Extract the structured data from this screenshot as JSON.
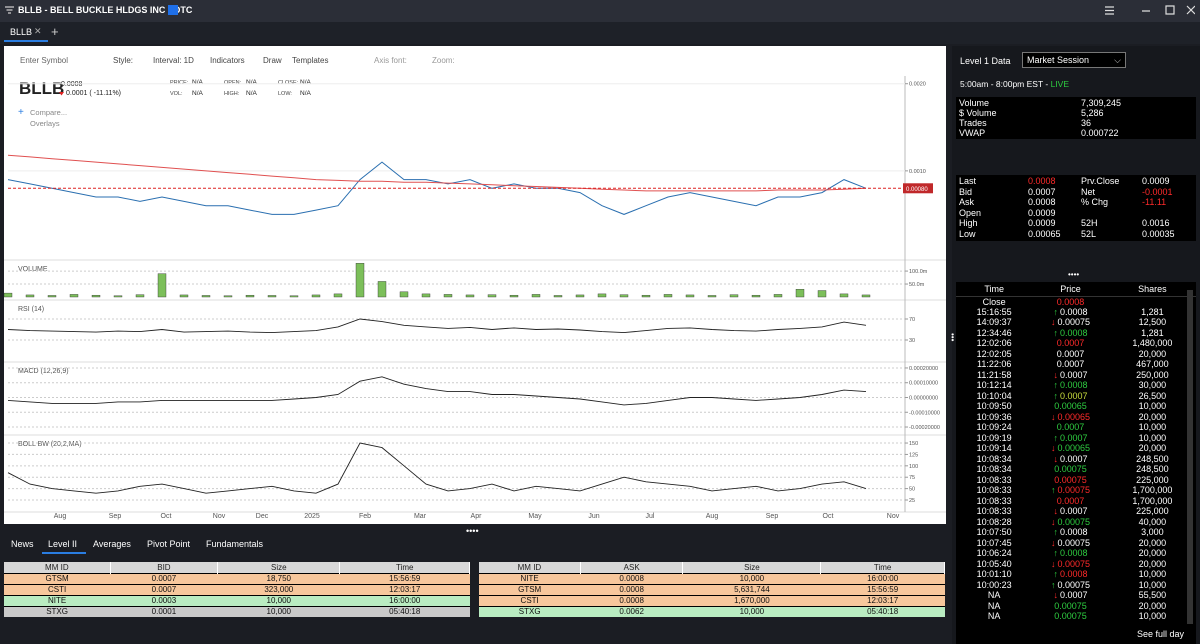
{
  "header": {
    "title": "BLLB - BELL BUCKLE HLDGS INC : OTC",
    "tabs": [
      "BLLB"
    ]
  },
  "toolbar": [
    "Enter Symbol",
    "Style:",
    "Interval: 1D",
    "Indicators",
    "Draw",
    "Templates",
    "Axis font:",
    "Zoom:"
  ],
  "quote": {
    "symbol": "BLLB",
    "price": "0.0008",
    "change": "0.0001 ( -11.11%)",
    "fields": [
      [
        "PRICE:",
        "N/A"
      ],
      [
        "OPEN:",
        "N/A"
      ],
      [
        "CLOSE:",
        "N/A"
      ],
      [
        "VOL:",
        "N/A"
      ],
      [
        "HIGH:",
        "N/A"
      ],
      [
        "LOW:",
        "N/A"
      ]
    ],
    "links": [
      "Compare...",
      "Overlays"
    ]
  },
  "chart_data": [
    {
      "type": "line",
      "ylim": [
        0,
        0.0021
      ],
      "yticks": [
        {
          "value": 0.002,
          "label": "0.0020"
        },
        {
          "value": 0.001,
          "label": "0.0010"
        }
      ],
      "current": {
        "value": 0.0008,
        "label": "0.00080"
      },
      "series": [
        {
          "color": "#2a6fb0",
          "values": [
            0.0009,
            0.00085,
            0.0008,
            0.00075,
            0.0007,
            0.0007,
            0.00065,
            0.0007,
            0.00065,
            0.0006,
            0.0006,
            0.00055,
            0.0005,
            0.0005,
            0.00055,
            0.0006,
            0.0009,
            0.0011,
            0.0009,
            0.0009,
            0.00085,
            0.0009,
            0.0008,
            0.00085,
            0.0008,
            0.0008,
            0.00075,
            0.0006,
            0.0005,
            0.0006,
            0.0007,
            0.00075,
            0.0007,
            0.00065,
            0.0006,
            0.0007,
            0.0007,
            0.00075,
            0.0009,
            0.0008
          ]
        },
        {
          "color": "#e05050",
          "values": [
            0.00118,
            0.00116,
            0.00114,
            0.00112,
            0.0011,
            0.00108,
            0.00106,
            0.00104,
            0.00102,
            0.001,
            0.00098,
            0.00096,
            0.00094,
            0.00092,
            0.0009,
            0.00089,
            0.00088,
            0.00088,
            0.00087,
            0.00087,
            0.00086,
            0.00085,
            0.00084,
            0.00083,
            0.00082,
            0.00081,
            0.0008,
            0.00079,
            0.00078,
            0.00077,
            0.00077,
            0.00077,
            0.00077,
            0.00077,
            0.00077,
            0.00078,
            0.00078,
            0.00078,
            0.00079,
            0.0008
          ]
        }
      ],
      "xticks": [
        "Aug",
        "Sep",
        "Oct",
        "Nov",
        "Dec",
        "2025",
        "Feb",
        "Mar",
        "Apr",
        "May",
        "Jun",
        "Jul",
        "Aug",
        "Sep",
        "Oct",
        "Nov"
      ]
    },
    {
      "type": "bar",
      "title": "VOLUME",
      "ylim": [
        0,
        135000000
      ],
      "yticks": [
        {
          "value": 100000000,
          "label": "100.0m"
        },
        {
          "value": 50000000,
          "label": "50.0m"
        }
      ],
      "color": "#7cbf5a",
      "values": [
        15000000,
        8000000,
        6000000,
        10000000,
        7000000,
        5000000,
        9000000,
        90000000,
        8000000,
        6000000,
        5000000,
        7000000,
        6000000,
        5000000,
        8000000,
        12000000,
        130000000,
        60000000,
        20000000,
        12000000,
        10000000,
        8000000,
        9000000,
        7000000,
        10000000,
        6000000,
        8000000,
        12000000,
        9000000,
        7000000,
        10000000,
        8000000,
        6000000,
        9000000,
        7000000,
        10000000,
        30000000,
        25000000,
        12000000,
        8000000
      ]
    },
    {
      "type": "line",
      "title": "RSI (14)",
      "ylim": [
        0,
        100
      ],
      "yticks": [
        70,
        30
      ],
      "color": "#222",
      "values": [
        50,
        48,
        47,
        46,
        45,
        47,
        46,
        50,
        45,
        46,
        47,
        45,
        44,
        46,
        48,
        55,
        70,
        65,
        58,
        55,
        52,
        54,
        50,
        53,
        50,
        51,
        49,
        46,
        44,
        48,
        52,
        53,
        50,
        48,
        47,
        50,
        52,
        55,
        64,
        58
      ]
    },
    {
      "type": "line",
      "title": "MACD (12,26,9)",
      "ylim": [
        -0.00025,
        0.00022
      ],
      "yticks": [
        {
          "value": 0.0002,
          "label": "0.00020000"
        },
        {
          "value": 0.0001,
          "label": "0.00010000"
        },
        {
          "value": 0,
          "label": "0.00000000"
        },
        {
          "value": -0.0001,
          "label": "-0.00010000"
        },
        {
          "value": -0.0002,
          "label": "-0.00020000"
        }
      ],
      "color": "#222",
      "values": [
        -2e-05,
        -3e-05,
        -4e-05,
        -4e-05,
        -4e-05,
        -3e-05,
        -3e-05,
        -2e-05,
        -2e-05,
        -2e-05,
        -2e-05,
        -2e-05,
        -2e-05,
        -1e-05,
        0,
        2e-05,
        0.00011,
        0.00014,
        9e-05,
        6e-05,
        4e-05,
        4e-05,
        2e-05,
        2e-05,
        1e-05,
        0,
        -1e-05,
        -3e-05,
        -5e-05,
        -4e-05,
        -2e-05,
        0,
        0,
        -1e-05,
        -2e-05,
        -1e-05,
        0,
        2e-05,
        5e-05,
        4e-05
      ]
    },
    {
      "type": "line",
      "title": "BOLL BW (20,2,MA)",
      "ylim": [
        0,
        165
      ],
      "yticks": [
        150,
        125,
        100,
        75,
        50,
        25
      ],
      "color": "#222",
      "values": [
        85,
        60,
        50,
        45,
        40,
        45,
        55,
        60,
        50,
        40,
        45,
        50,
        55,
        45,
        40,
        60,
        150,
        140,
        100,
        60,
        45,
        50,
        60,
        45,
        55,
        50,
        45,
        60,
        75,
        65,
        60,
        55,
        45,
        50,
        55,
        45,
        50,
        60,
        65,
        50
      ]
    }
  ],
  "bottom": {
    "tabs": [
      "News",
      "Level II",
      "Averages",
      "Pivot Point",
      "Fundamentals"
    ],
    "bid": {
      "headers": [
        "MM ID",
        "BID",
        "Size",
        "Time"
      ],
      "rows": [
        {
          "cells": [
            "GTSM",
            "0.0007",
            "18,750",
            "15:56:59"
          ],
          "color": "#f7c79c"
        },
        {
          "cells": [
            "CSTI",
            "0.0007",
            "323,000",
            "12:03:17"
          ],
          "color": "#f7c79c"
        },
        {
          "cells": [
            "NITE",
            "0.0003",
            "10,000",
            "16:00:00"
          ],
          "color": "#b9ecc1"
        },
        {
          "cells": [
            "STXG",
            "0.0001",
            "10,000",
            "05:40:18"
          ],
          "color": "#c9c9c9"
        }
      ]
    },
    "ask": {
      "headers": [
        "MM ID",
        "ASK",
        "Size",
        "Time"
      ],
      "rows": [
        {
          "cells": [
            "NITE",
            "0.0008",
            "10,000",
            "16:00:00"
          ],
          "color": "#f7c79c"
        },
        {
          "cells": [
            "GTSM",
            "0.0008",
            "5,631,744",
            "15:56:59"
          ],
          "color": "#f7c79c"
        },
        {
          "cells": [
            "CSTI",
            "0.0008",
            "1,670,000",
            "12:03:17"
          ],
          "color": "#f7c79c"
        },
        {
          "cells": [
            "STXG",
            "0.0062",
            "10,000",
            "05:40:18"
          ],
          "color": "#b9ecc1"
        }
      ]
    }
  },
  "level1": {
    "title": "Level 1 Data",
    "session": "Market Session",
    "hours": "5:00am - 8:00pm EST - ",
    "live": "LIVE",
    "stats": [
      [
        "Volume",
        "7,309,245"
      ],
      [
        "$ Volume",
        "5,286"
      ],
      [
        " Trades",
        "36"
      ],
      [
        " VWAP",
        "0.000722"
      ]
    ],
    "quote": [
      {
        "cells": [
          "Last",
          "0.0008",
          "Prv.Close",
          "0.0009"
        ],
        "colors": [
          "#fff",
          "#ff2a2a",
          "#fff",
          "#fff"
        ]
      },
      {
        "cells": [
          "Bid",
          "0.0007",
          "Net",
          "-0.0001"
        ],
        "colors": [
          "#fff",
          "#fff",
          "#fff",
          "#ff2a2a"
        ]
      },
      {
        "cells": [
          "Ask",
          "0.0008",
          "% Chg",
          "-11.11"
        ],
        "colors": [
          "#fff",
          "#fff",
          "#fff",
          "#ff2a2a"
        ]
      },
      {
        "cells": [
          "Open",
          "0.0009"
        ],
        "colors": [
          "#fff",
          "#fff"
        ]
      },
      {
        "cells": [
          "High",
          "0.0009",
          "52H",
          "0.0016"
        ],
        "colors": [
          "#fff",
          "#fff",
          "#fff",
          "#fff"
        ]
      },
      {
        "cells": [
          "Low",
          "0.00065",
          "52L",
          "0.00035"
        ],
        "colors": [
          "#fff",
          "#fff",
          "#fff",
          "#fff"
        ]
      }
    ]
  },
  "time_sales": {
    "headers": [
      "Time",
      "Price",
      "Shares"
    ],
    "rows": [
      {
        "time": "Close",
        "price": "0.0008",
        "color": "#ff2a2a"
      },
      {
        "time": "15:16:55",
        "price": "0.0008",
        "shares": "1,281",
        "arrow": "up",
        "color": "#fff"
      },
      {
        "time": "14:09:37",
        "price": "0.00075",
        "shares": "12,500",
        "arrow": "down",
        "color": "#fff"
      },
      {
        "time": "12:34:46",
        "price": "0.0008",
        "shares": "1,281",
        "arrow": "up",
        "color": "#2ecc40"
      },
      {
        "time": "12:02:06",
        "price": "0.0007",
        "shares": "1,480,000",
        "color": "#ff2a2a"
      },
      {
        "time": "12:02:05",
        "price": "0.0007",
        "shares": "20,000",
        "color": "#fff"
      },
      {
        "time": "11:22:06",
        "price": "0.0007",
        "shares": "467,000",
        "color": "#fff"
      },
      {
        "time": "11:21:58",
        "price": "0.0007",
        "shares": "250,000",
        "arrow": "down",
        "color": "#fff"
      },
      {
        "time": "10:12:14",
        "price": "0.0008",
        "shares": "30,000",
        "arrow": "up",
        "color": "#2ecc40"
      },
      {
        "time": "10:10:04",
        "price": "0.0007",
        "shares": "26,500",
        "arrow": "up",
        "color": "#c8dc3c"
      },
      {
        "time": "10:09:50",
        "price": "0.00065",
        "shares": "10,000",
        "color": "#2ecc40"
      },
      {
        "time": "10:09:36",
        "price": "0.00065",
        "shares": "20,000",
        "arrow": "down",
        "color": "#ff2a2a"
      },
      {
        "time": "10:09:24",
        "price": "0.0007",
        "shares": "10,000",
        "color": "#2ecc40"
      },
      {
        "time": "10:09:19",
        "price": "0.0007",
        "shares": "10,000",
        "arrow": "up",
        "color": "#2ecc40"
      },
      {
        "time": "10:09:14",
        "price": "0.00065",
        "shares": "20,000",
        "arrow": "down",
        "color": "#2ecc40"
      },
      {
        "time": "10:08:34",
        "price": "0.0007",
        "shares": "248,500",
        "arrow": "down",
        "color": "#fff"
      },
      {
        "time": "10:08:34",
        "price": "0.00075",
        "shares": "248,500",
        "color": "#2ecc40"
      },
      {
        "time": "10:08:33",
        "price": "0.00075",
        "shares": "225,000",
        "color": "#ff2a2a"
      },
      {
        "time": "10:08:33",
        "price": "0.00075",
        "shares": "1,700,000",
        "arrow": "up",
        "color": "#ff2a2a"
      },
      {
        "time": "10:08:33",
        "price": "0.0007",
        "shares": "1,700,000",
        "color": "#ff2a2a"
      },
      {
        "time": "10:08:33",
        "price": "0.0007",
        "shares": "225,000",
        "arrow": "down",
        "color": "#fff"
      },
      {
        "time": "10:08:28",
        "price": "0.00075",
        "shares": "40,000",
        "arrow": "down",
        "color": "#2ecc40"
      },
      {
        "time": "10:07:50",
        "price": "0.0008",
        "shares": "3,000",
        "arrow": "up",
        "color": "#fff"
      },
      {
        "time": "10:07:45",
        "price": "0.00075",
        "shares": "20,000",
        "arrow": "down",
        "color": "#fff"
      },
      {
        "time": "10:06:24",
        "price": "0.0008",
        "shares": "20,000",
        "arrow": "up",
        "color": "#2ecc40"
      },
      {
        "time": "10:05:40",
        "price": "0.00075",
        "shares": "20,000",
        "arrow": "down",
        "color": "#ff2a2a"
      },
      {
        "time": "10:01:10",
        "price": "0.0008",
        "shares": "10,000",
        "arrow": "up",
        "color": "#ff2a2a"
      },
      {
        "time": "10:00:23",
        "price": "0.00075",
        "shares": "10,000",
        "arrow": "up",
        "color": "#fff"
      },
      {
        "time": "NA",
        "price": "0.0007",
        "shares": "55,500",
        "arrow": "down",
        "color": "#fff"
      },
      {
        "time": "NA",
        "price": "0.00075",
        "shares": "20,000",
        "color": "#2ecc40"
      },
      {
        "time": "NA",
        "price": "0.00075",
        "shares": "10,000",
        "color": "#2ecc40"
      }
    ],
    "footer": "See full day"
  }
}
